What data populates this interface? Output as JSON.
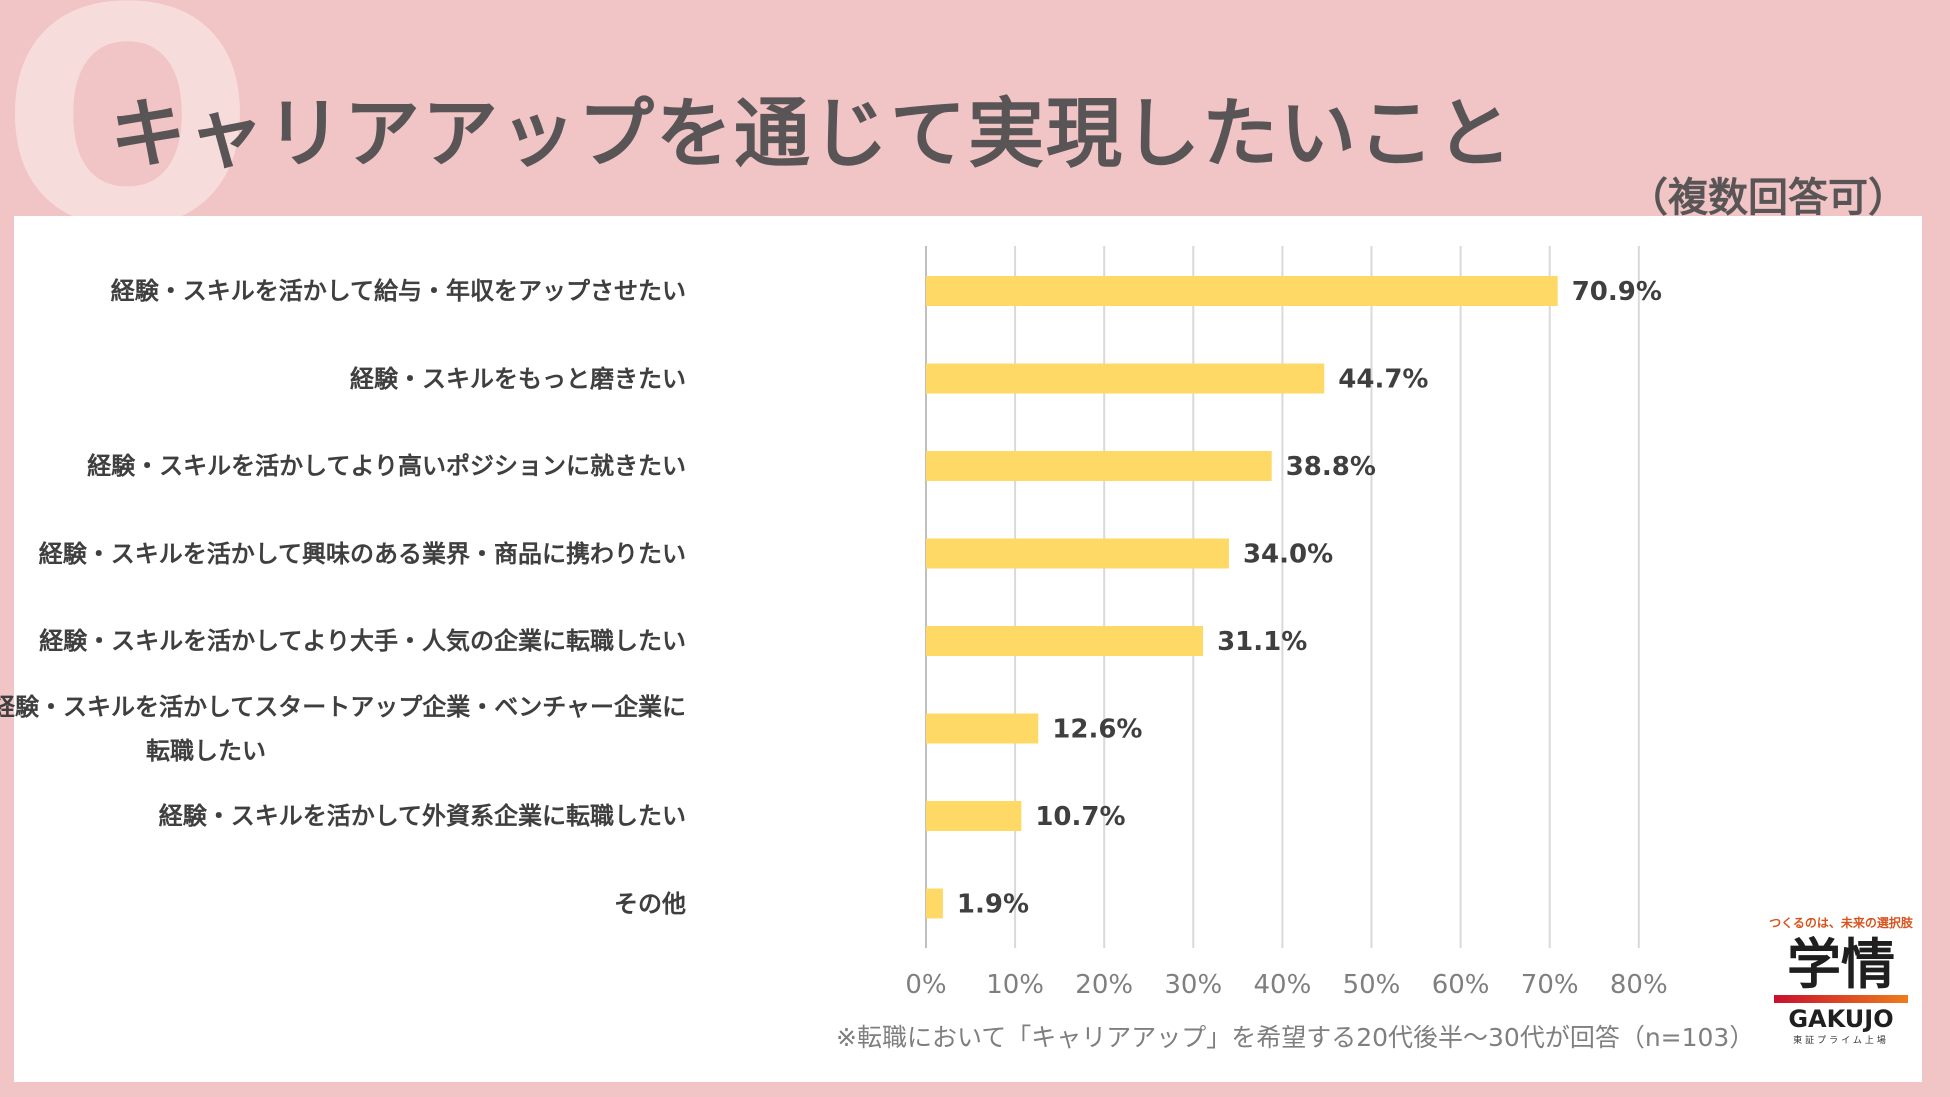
{
  "title": "キャリアアップを通じて実現したいこと",
  "subtitle": "（複数回答可）",
  "decoration_letter": "Q",
  "chart_data": {
    "type": "bar",
    "orientation": "horizontal",
    "categories": [
      "経験・スキルを活かして給与・年収をアップさせたい",
      "経験・スキルをもっと磨きたい",
      "経験・スキルを活かしてより高いポジションに就きたい",
      "経験・スキルを活かして興味のある業界・商品に携わりたい",
      "経験・スキルを活かしてより大手・人気の企業に転職したい",
      "経験・スキルを活かしてスタートアップ企業・ベンチャー企業に転職したい",
      "経験・スキルを活かして外資系企業に転職したい",
      "その他"
    ],
    "category_lines": [
      [
        "経験・スキルを活かして給与・年収をアップさせたい"
      ],
      [
        "経験・スキルをもっと磨きたい"
      ],
      [
        "経験・スキルを活かしてより高いポジションに就きたい"
      ],
      [
        "経験・スキルを活かして興味のある業界・商品に携わりたい"
      ],
      [
        "経験・スキルを活かしてより大手・人気の企業に転職したい"
      ],
      [
        "経験・スキルを活かしてスタートアップ企業・ベンチャー企業に",
        "転職したい"
      ],
      [
        "経験・スキルを活かして外資系企業に転職したい"
      ],
      [
        "その他"
      ]
    ],
    "values": [
      70.9,
      44.7,
      38.8,
      34.0,
      31.1,
      12.6,
      10.7,
      1.9
    ],
    "value_labels": [
      "70.9%",
      "44.7%",
      "38.8%",
      "34.0%",
      "31.1%",
      "12.6%",
      "10.7%",
      "1.9%"
    ],
    "x_ticks": [
      "0%",
      "10%",
      "20%",
      "30%",
      "40%",
      "50%",
      "60%",
      "70%",
      "80%"
    ],
    "xlim": [
      0,
      80
    ],
    "grid": true,
    "bar_color": "#ffd966"
  },
  "note": "※転職において「キャリアアップ」を希望する20代後半～30代が回答（n=103）",
  "logo": {
    "tagline": "つくるのは、未来の選択肢",
    "kanji": "学情",
    "english": "GAKUJO",
    "sub": "東証プライム上場"
  }
}
